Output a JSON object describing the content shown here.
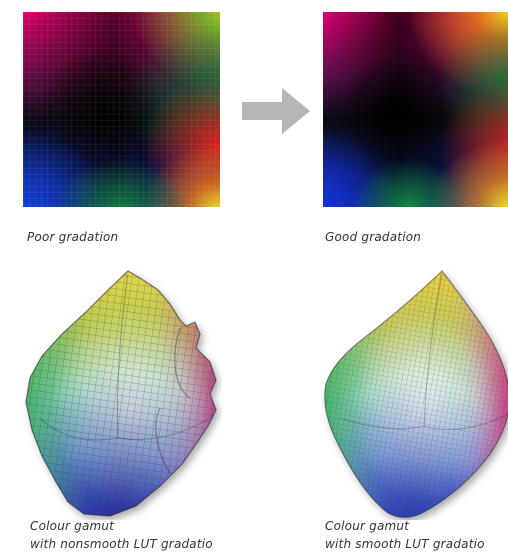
{
  "figure": {
    "arrow_color": "#b4b7b3",
    "left_panel": {
      "gradient_caption": "Poor gradation",
      "gamut_caption_line1": "Colour gamut",
      "gamut_caption_line2": "with nonsmooth LUT gradatio"
    },
    "right_panel": {
      "gradient_caption": "Good gradation",
      "gamut_caption_line1": "Colour gamut",
      "gamut_caption_line2": "with smooth LUT gradatio"
    }
  }
}
